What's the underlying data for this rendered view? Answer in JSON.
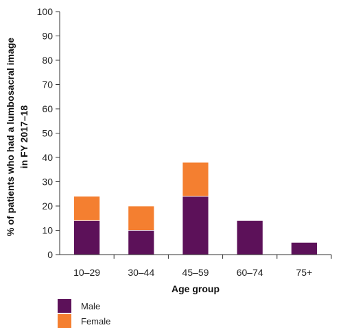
{
  "chart_data": {
    "type": "bar",
    "stacked": true,
    "title": "",
    "xlabel": "Age group",
    "ylabel": "% of patients who had a lumbosacral image in FY 2017–18",
    "ylabel_lines": [
      "% of patients who had a lumbosacral image",
      "in FY 2017–18"
    ],
    "ylim": [
      0,
      100
    ],
    "yticks": [
      0,
      10,
      20,
      30,
      40,
      50,
      60,
      70,
      80,
      90,
      100
    ],
    "categories": [
      "10–29",
      "30–44",
      "45–59",
      "60–74",
      "75+"
    ],
    "series": [
      {
        "name": "Male",
        "color": "#5c1159",
        "values": [
          14,
          10,
          24,
          14,
          5
        ]
      },
      {
        "name": "Female",
        "color": "#f47f30",
        "values": [
          10,
          10,
          14,
          0,
          0
        ]
      }
    ],
    "grid": false,
    "legend": "bottom-left"
  }
}
